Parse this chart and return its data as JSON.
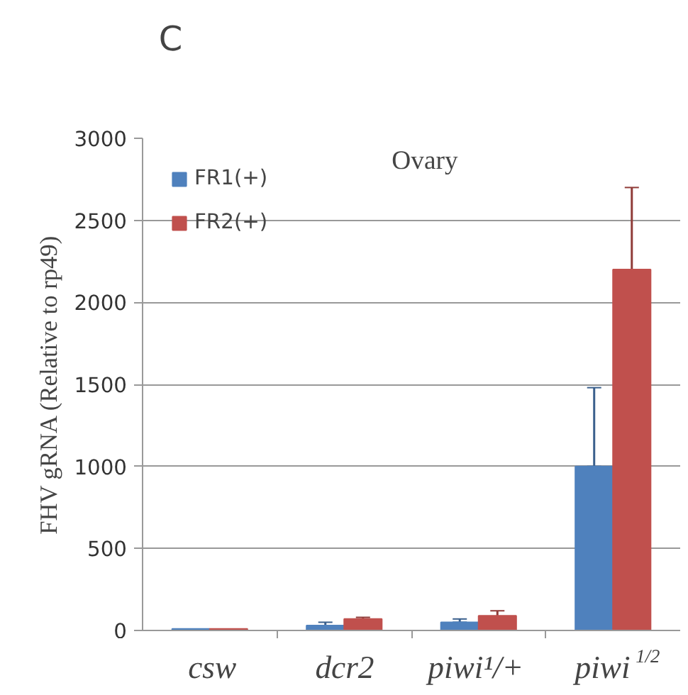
{
  "chart_data": {
    "type": "bar",
    "title": "Ovary",
    "ylabel": "FHV gRNA (Relative to rp49)",
    "annotations": [
      "C"
    ],
    "categories": [
      "csw",
      "dcr2",
      "piwi¹/+",
      "piwi$^{1/2}$"
    ],
    "series": [
      {
        "name": "FR1(+)",
        "color": "#4f81bd",
        "values": [
          10,
          30,
          50,
          1000
        ],
        "errors": [
          null,
          [
            30,
            50
          ],
          [
            50,
            70
          ],
          [
            1000,
            1480
          ]
        ]
      },
      {
        "name": "FR2(+)",
        "color": "#c0504d",
        "values": [
          10,
          70,
          90,
          2200
        ],
        "errors": [
          null,
          [
            70,
            80
          ],
          [
            70,
            120
          ],
          [
            2200,
            2700
          ]
        ]
      }
    ],
    "ylim": [
      0,
      3000
    ],
    "yticks": [
      0,
      500,
      1000,
      1500,
      2000,
      2500,
      3000
    ],
    "grid": "y",
    "legend": "top left"
  }
}
